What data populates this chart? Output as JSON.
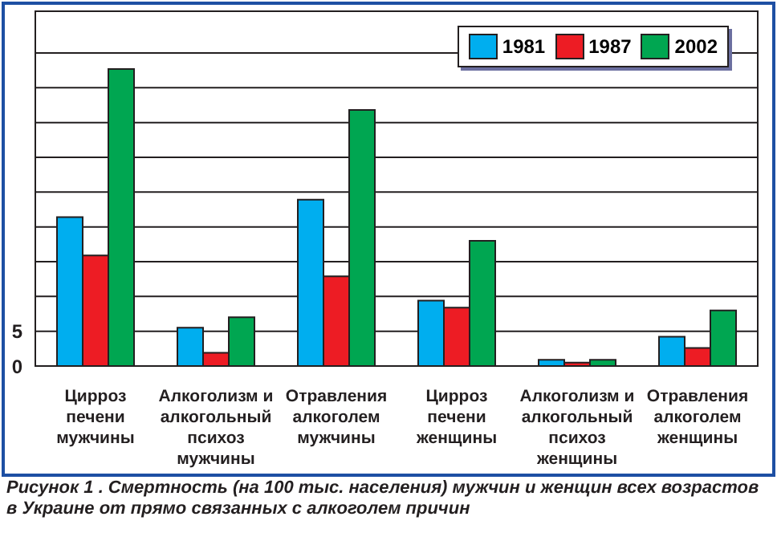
{
  "chart_data": {
    "type": "bar",
    "categories": [
      "Цирроз печени мужчины",
      "Алкоголизм и алкогольный психоз мужчины",
      "Отравления алкоголем мужчины",
      "Цирроз печени женщины",
      "Алкоголизм и алкогольный психоз женщины",
      "Отравления алкоголем женщины"
    ],
    "series": [
      {
        "name": "1981",
        "color": "#00aeef",
        "values": [
          21.4,
          5.5,
          23.9,
          9.4,
          0.9,
          4.2
        ]
      },
      {
        "name": "1987",
        "color": "#ed1c24",
        "values": [
          15.9,
          1.9,
          12.9,
          8.4,
          0.5,
          2.6
        ]
      },
      {
        "name": "2002",
        "color": "#00a651",
        "values": [
          42.7,
          7.0,
          36.8,
          18.0,
          0.9,
          8.0
        ]
      }
    ],
    "ylim": [
      0,
      45
    ],
    "yticks": [
      0,
      5,
      {
        "value": 10,
        "label": null
      },
      {
        "value": 15,
        "label": null
      },
      {
        "value": 20,
        "label": null
      },
      {
        "value": 25,
        "label": null
      },
      {
        "value": 30,
        "label": null
      },
      {
        "value": 35,
        "label": null
      },
      {
        "value": 40,
        "label": null
      },
      {
        "value": 45,
        "label": null
      }
    ],
    "grid": "y",
    "legend": "top right",
    "annotations": [
      "Рисунок 1 . Смертность (на 100 тыс. населения) мужчин и женщин всех возрастов в Украине от прямо связанных с алкоголем причин"
    ]
  }
}
